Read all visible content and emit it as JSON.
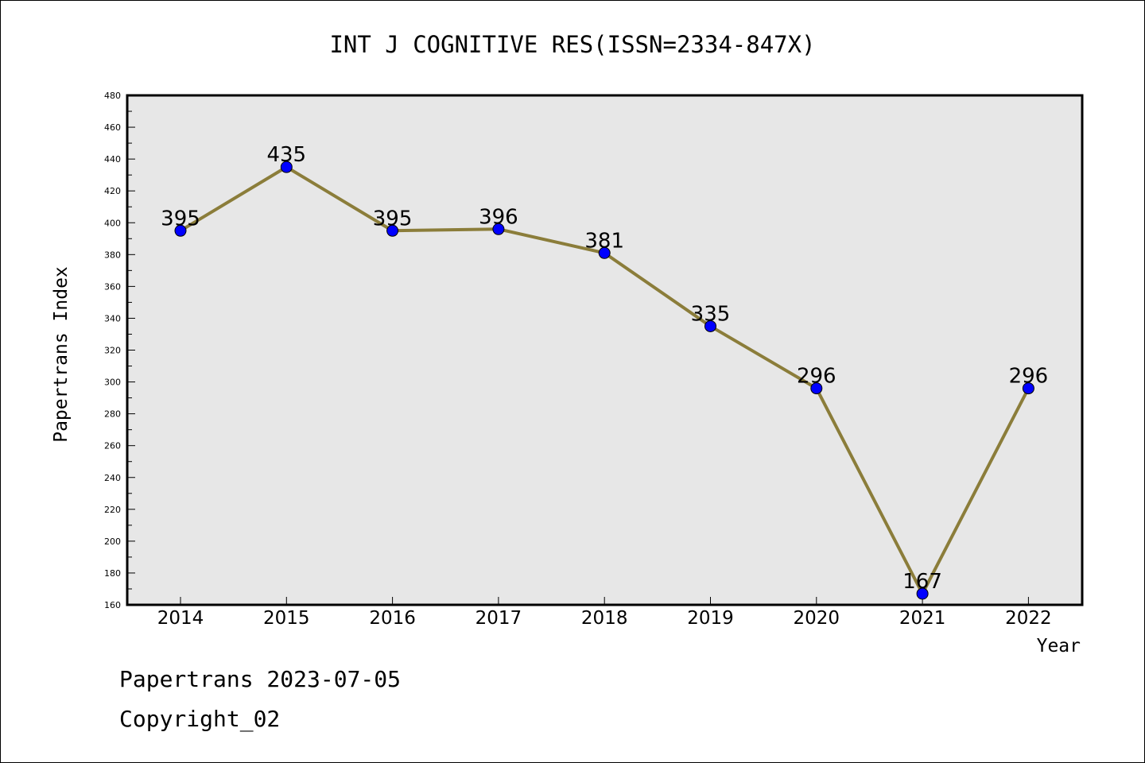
{
  "chart_data": {
    "type": "line",
    "title": "INT J COGNITIVE RES(ISSN=2334-847X)",
    "xlabel": "Year",
    "ylabel": "Papertrans Index",
    "categories": [
      "2014",
      "2015",
      "2016",
      "2017",
      "2018",
      "2019",
      "2020",
      "2021",
      "2022"
    ],
    "values": [
      395,
      435,
      395,
      396,
      381,
      335,
      296,
      167,
      296
    ],
    "data_labels": [
      "395",
      "435",
      "395",
      "396",
      "381",
      "335",
      "296",
      "167",
      "296"
    ],
    "ylim": [
      160,
      480
    ],
    "yticks": [
      "160",
      "180",
      "200",
      "220",
      "240",
      "260",
      "280",
      "300",
      "320",
      "340",
      "360",
      "380",
      "400",
      "420",
      "440",
      "460",
      "480"
    ],
    "grid": false,
    "legend": "none",
    "colors": {
      "line": "#8b7d3a",
      "marker": "#0000ff",
      "plot_bg": "#e7e7e7"
    }
  },
  "footer": {
    "line1": "Papertrans 2023-07-05",
    "line2": "Copyright_02"
  }
}
